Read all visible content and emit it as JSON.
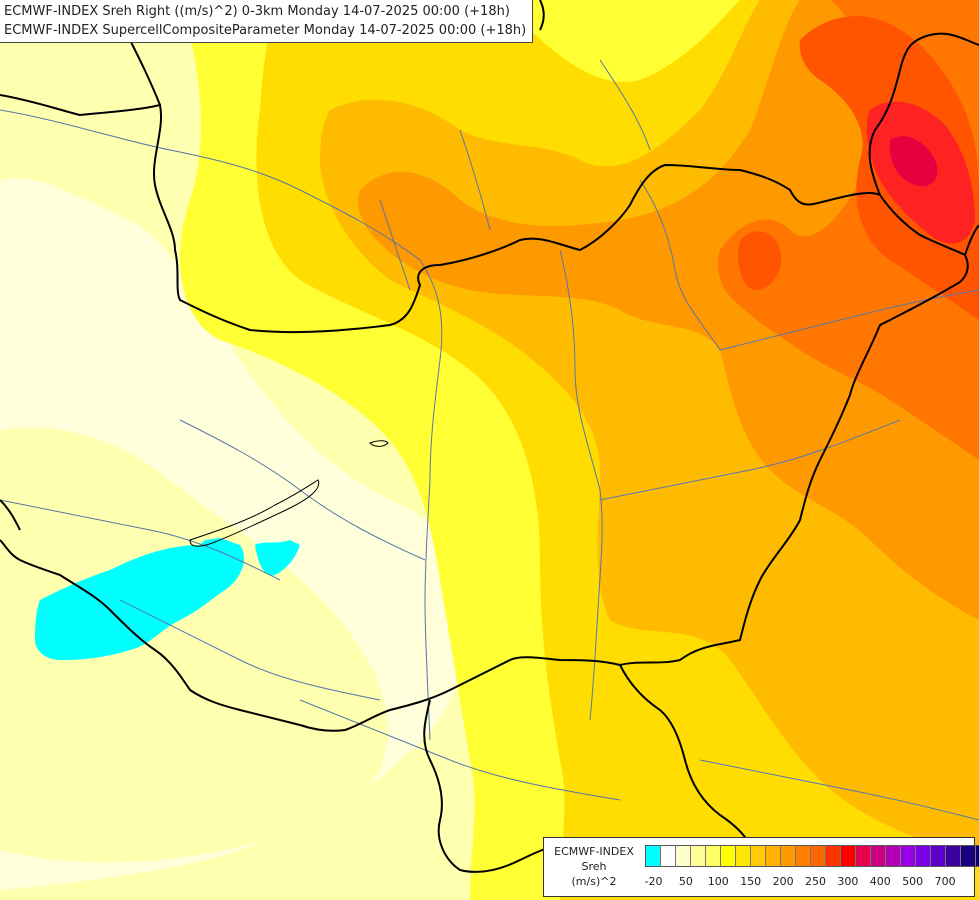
{
  "titles": {
    "line1": "ECMWF-INDEX Sreh Right ((m/s)^2) 0-3km Monday 14-07-2025 00:00 (+18h)",
    "line2": "ECMWF-INDEX SupercellCompositeParameter Monday 14-07-2025 00:00 (+18h)"
  },
  "legend": {
    "source": "ECMWF-INDEX",
    "parameter": "Sreh",
    "unit": "(m/s)^2",
    "colors": [
      "#00ffff",
      "#ffffff",
      "#ffffcc",
      "#ffff99",
      "#ffff66",
      "#ffff00",
      "#ffe600",
      "#ffcc00",
      "#ffb300",
      "#ff9900",
      "#ff8000",
      "#ff6600",
      "#ff3300",
      "#ff0000",
      "#e6004d",
      "#cc0080",
      "#b300b3",
      "#9900e6",
      "#7a00e6",
      "#5a00cc",
      "#3a00a0",
      "#1a0080",
      "#00007a"
    ],
    "ticks": [
      {
        "label": "-20",
        "index": 0
      },
      {
        "label": "50",
        "index": 2
      },
      {
        "label": "100",
        "index": 4
      },
      {
        "label": "150",
        "index": 6
      },
      {
        "label": "200",
        "index": 8
      },
      {
        "label": "250",
        "index": 10
      },
      {
        "label": "300",
        "index": 12
      },
      {
        "label": "400",
        "index": 14
      },
      {
        "label": "500",
        "index": 16
      },
      {
        "label": "700",
        "index": 18
      }
    ]
  },
  "map_colors": {
    "cyan": "#00ffff",
    "palest": "#ffffdc",
    "pale": "#ffffb0",
    "light": "#ffff80",
    "yellow": "#ffff33",
    "gold": "#ffdd00",
    "amber": "#ffbb00",
    "orange": "#ff9900",
    "deep_orange": "#ff7700",
    "red_orange": "#ff5500",
    "red": "#ff2222",
    "crimson": "#e60040",
    "border": "#000000",
    "river": "#5577aa"
  }
}
